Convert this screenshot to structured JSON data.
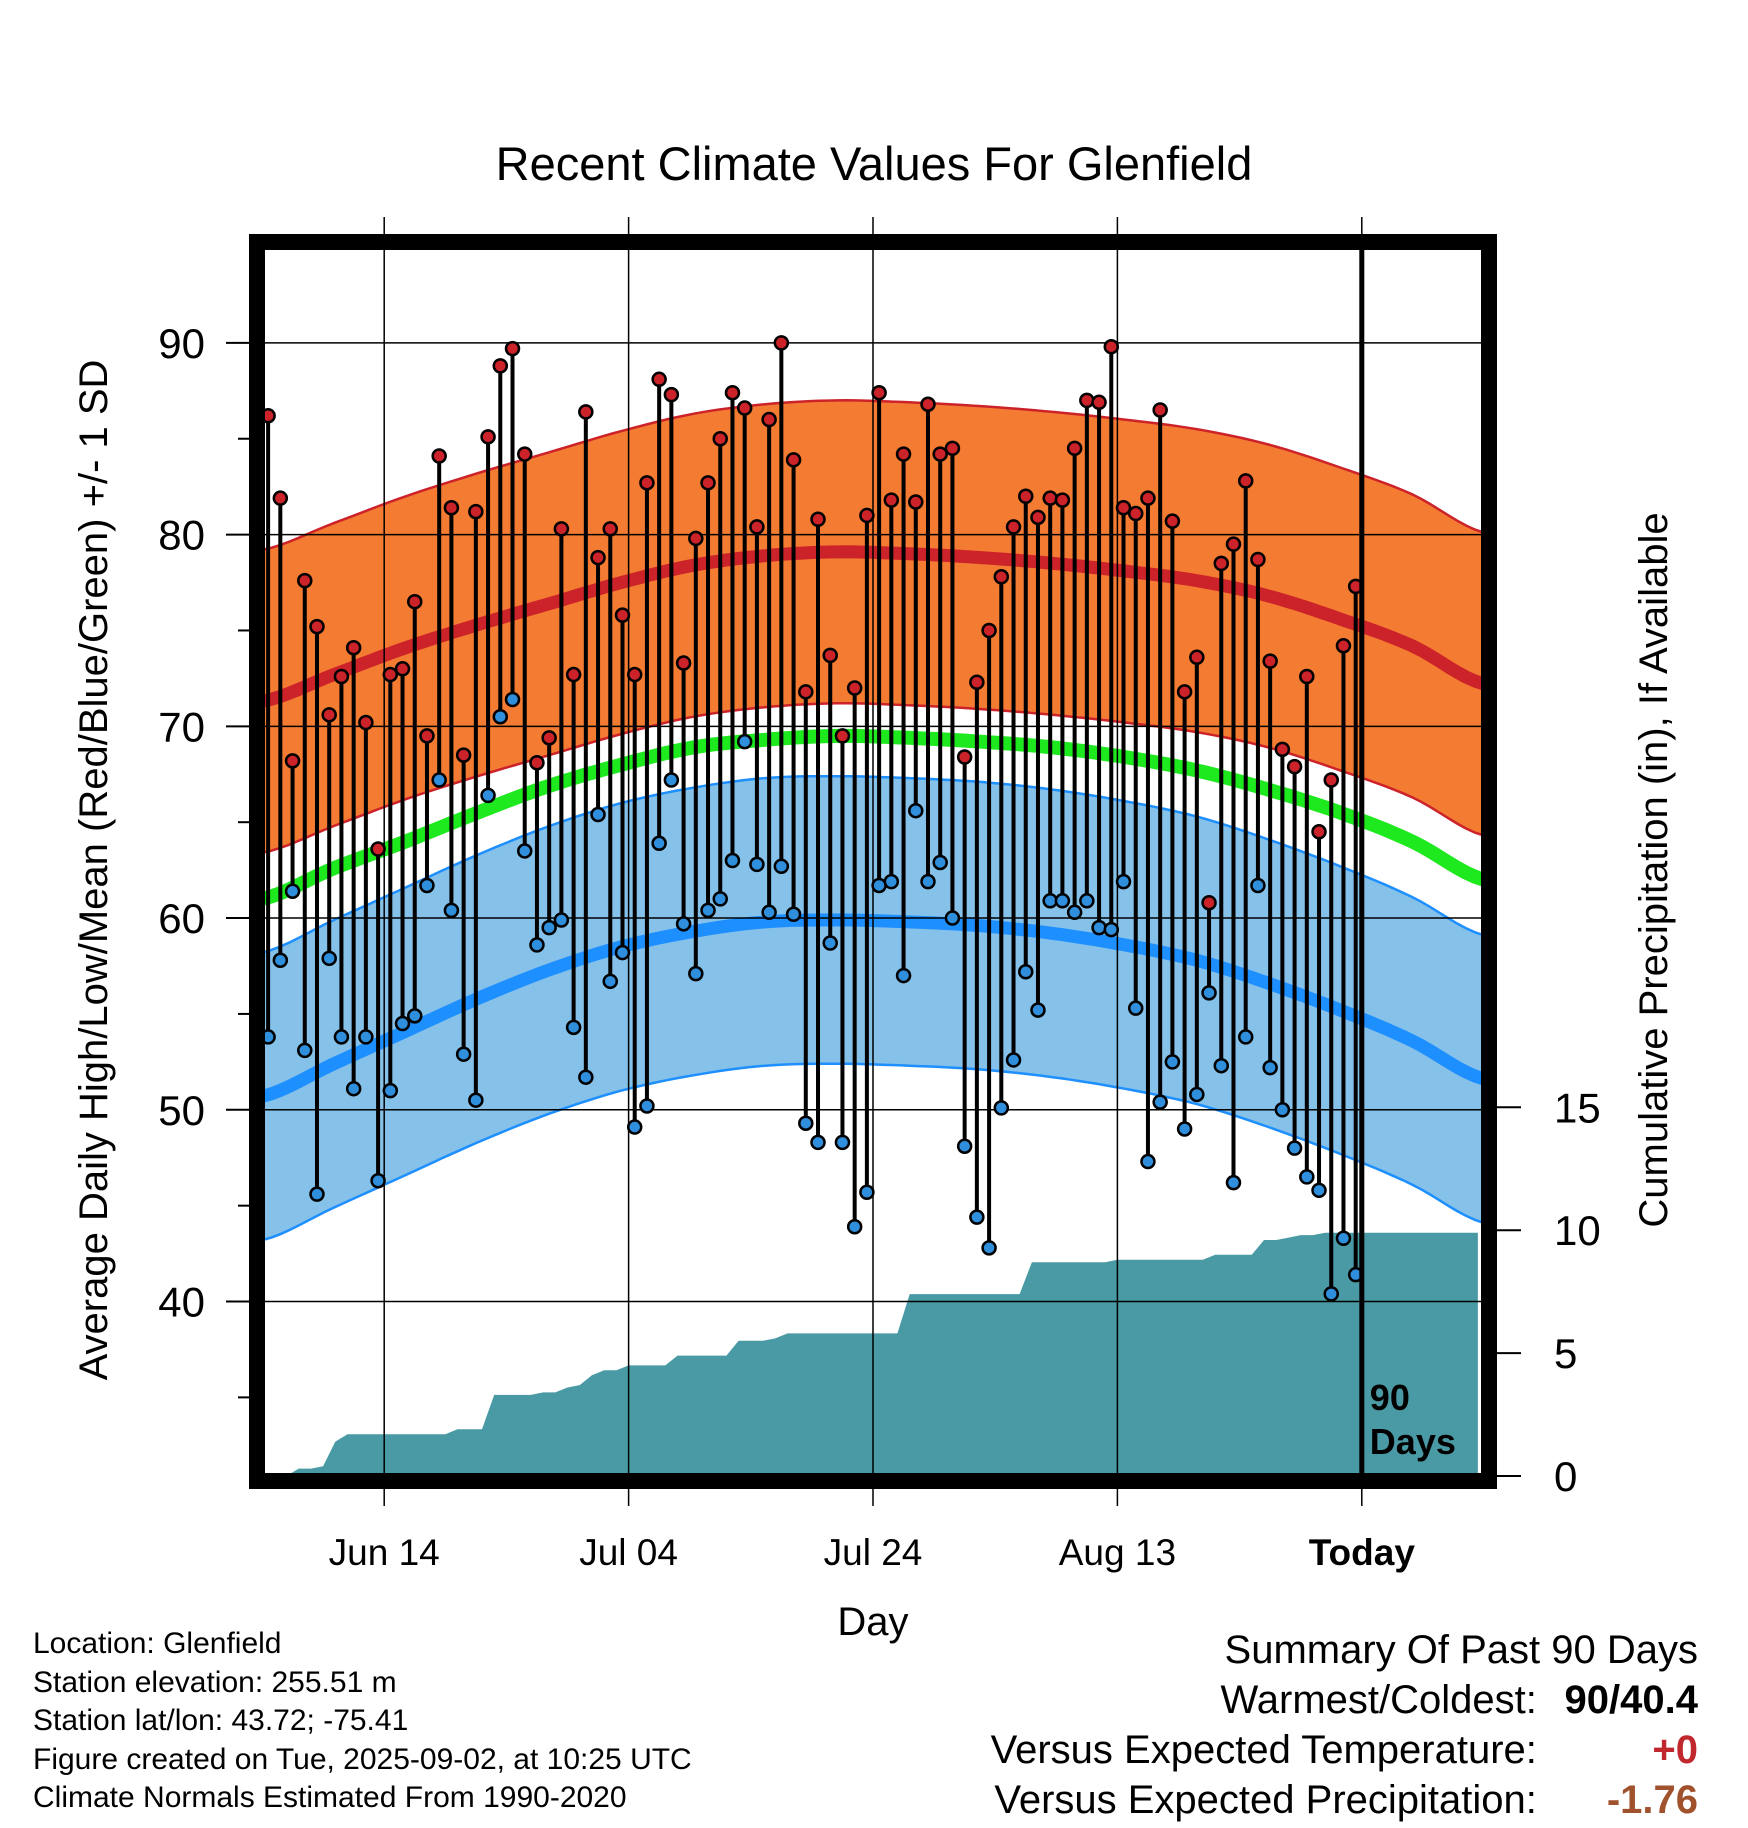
{
  "chart_data": {
    "type": "line",
    "title": "Recent Climate Values For Glenfield",
    "xlabel": "Day",
    "ylabel_left": "Average Daily High/Low/Mean (Red/Blue/Green) +/- 1 SD",
    "ylabel_right": "Cumulative Precipitation (in), If Available",
    "x_ticks": [
      "Jun 14",
      "Jul 04",
      "Jul 24",
      "Aug 13",
      "Today"
    ],
    "y_left_ticks": [
      40,
      50,
      60,
      70,
      80,
      90
    ],
    "y_right_ticks": [
      0,
      5,
      10,
      15
    ],
    "y_left_range": [
      30.9,
      95
    ],
    "y_right_range": [
      0,
      50
    ],
    "today_label": "90 Days",
    "grid": true,
    "colors": {
      "high_band": "#f47b32",
      "high_line": "#cc2229",
      "low_band": "#85c1e9",
      "low_line": "#1e8fff",
      "mean_line": "#1ee81e",
      "precip": "#4a9aa5",
      "high_dot": "#cc2229",
      "low_dot": "#2f8fdc"
    },
    "normals": {
      "high": [
        71.3,
        72.7,
        74.1,
        75.3,
        76.4,
        77.5,
        78.4,
        78.9,
        79.1,
        79.0,
        78.8,
        78.5,
        78.1,
        77.6,
        76.8,
        75.6,
        74.2,
        72.2
      ],
      "high_sd": 7.9,
      "low": [
        50.7,
        52.4,
        54.1,
        55.8,
        57.3,
        58.5,
        59.3,
        59.8,
        59.9,
        59.8,
        59.6,
        59.2,
        58.6,
        57.8,
        56.6,
        55.2,
        53.6,
        51.6
      ],
      "low_sd": 7.5,
      "mean": [
        61.0,
        62.6,
        64.0,
        65.5,
        66.9,
        68.0,
        68.9,
        69.3,
        69.5,
        69.4,
        69.2,
        68.9,
        68.4,
        67.7,
        66.7,
        65.5,
        64.0,
        62.0
      ]
    },
    "days": [
      {
        "hi": 86.2,
        "lo": 53.8
      },
      {
        "hi": 81.9,
        "lo": 57.8
      },
      {
        "hi": 68.2,
        "lo": 61.4
      },
      {
        "hi": 77.6,
        "lo": 53.1
      },
      {
        "hi": 75.2,
        "lo": 45.6
      },
      {
        "hi": 70.6,
        "lo": 57.9
      },
      {
        "hi": 72.6,
        "lo": 53.8
      },
      {
        "hi": 74.1,
        "lo": 51.1
      },
      {
        "hi": 70.2,
        "lo": 53.8
      },
      {
        "hi": 63.6,
        "lo": 46.3
      },
      {
        "hi": 72.7,
        "lo": 51.0
      },
      {
        "hi": 73.0,
        "lo": 54.5
      },
      {
        "hi": 76.5,
        "lo": 54.9
      },
      {
        "hi": 69.5,
        "lo": 61.7
      },
      {
        "hi": 84.1,
        "lo": 67.2
      },
      {
        "hi": 81.4,
        "lo": 60.4
      },
      {
        "hi": 68.5,
        "lo": 52.9
      },
      {
        "hi": 81.2,
        "lo": 50.5
      },
      {
        "hi": 85.1,
        "lo": 66.4
      },
      {
        "hi": 88.8,
        "lo": 70.5
      },
      {
        "hi": 89.7,
        "lo": 71.4
      },
      {
        "hi": 84.2,
        "lo": 63.5
      },
      {
        "hi": 68.1,
        "lo": 58.6
      },
      {
        "hi": 69.4,
        "lo": 59.5
      },
      {
        "hi": 80.3,
        "lo": 59.9
      },
      {
        "hi": 72.7,
        "lo": 54.3
      },
      {
        "hi": 86.4,
        "lo": 51.7
      },
      {
        "hi": 78.8,
        "lo": 65.4
      },
      {
        "hi": 80.3,
        "lo": 56.7
      },
      {
        "hi": 75.8,
        "lo": 58.2
      },
      {
        "hi": 72.7,
        "lo": 49.1
      },
      {
        "hi": 82.7,
        "lo": 50.2
      },
      {
        "hi": 88.1,
        "lo": 63.9
      },
      {
        "hi": 87.3,
        "lo": 67.2
      },
      {
        "hi": 73.3,
        "lo": 59.7
      },
      {
        "hi": 79.8,
        "lo": 57.1
      },
      {
        "hi": 82.7,
        "lo": 60.4
      },
      {
        "hi": 85.0,
        "lo": 61.0
      },
      {
        "hi": 87.4,
        "lo": 63.0
      },
      {
        "hi": 86.6,
        "lo": 69.2
      },
      {
        "hi": 80.4,
        "lo": 62.8
      },
      {
        "hi": 86.0,
        "lo": 60.3
      },
      {
        "hi": 90.0,
        "lo": 62.7
      },
      {
        "hi": 83.9,
        "lo": 60.2
      },
      {
        "hi": 71.8,
        "lo": 49.3
      },
      {
        "hi": 80.8,
        "lo": 48.3
      },
      {
        "hi": 73.7,
        "lo": 58.7
      },
      {
        "hi": 69.5,
        "lo": 48.3
      },
      {
        "hi": 72.0,
        "lo": 43.9
      },
      {
        "hi": 81.0,
        "lo": 45.7
      },
      {
        "hi": 87.4,
        "lo": 61.7
      },
      {
        "hi": 81.8,
        "lo": 61.9
      },
      {
        "hi": 84.2,
        "lo": 57.0
      },
      {
        "hi": 81.7,
        "lo": 65.6
      },
      {
        "hi": 86.8,
        "lo": 61.9
      },
      {
        "hi": 84.2,
        "lo": 62.9
      },
      {
        "hi": 84.5,
        "lo": 60.0
      },
      {
        "hi": 68.4,
        "lo": 48.1
      },
      {
        "hi": 72.3,
        "lo": 44.4
      },
      {
        "hi": 75.0,
        "lo": 42.8
      },
      {
        "hi": 77.8,
        "lo": 50.1
      },
      {
        "hi": 80.4,
        "lo": 52.6
      },
      {
        "hi": 82.0,
        "lo": 57.2
      },
      {
        "hi": 80.9,
        "lo": 55.2
      },
      {
        "hi": 81.9,
        "lo": 60.9
      },
      {
        "hi": 81.8,
        "lo": 60.9
      },
      {
        "hi": 84.5,
        "lo": 60.3
      },
      {
        "hi": 87.0,
        "lo": 60.9
      },
      {
        "hi": 86.9,
        "lo": 59.5
      },
      {
        "hi": 89.8,
        "lo": 59.4
      },
      {
        "hi": 81.4,
        "lo": 61.9
      },
      {
        "hi": 81.1,
        "lo": 55.3
      },
      {
        "hi": 81.9,
        "lo": 47.3
      },
      {
        "hi": 86.5,
        "lo": 50.4
      },
      {
        "hi": 80.7,
        "lo": 52.5
      },
      {
        "hi": 71.8,
        "lo": 49.0
      },
      {
        "hi": 73.6,
        "lo": 50.8
      },
      {
        "hi": 60.8,
        "lo": 56.1
      },
      {
        "hi": 78.5,
        "lo": 52.3
      },
      {
        "hi": 79.5,
        "lo": 46.2
      },
      {
        "hi": 82.8,
        "lo": 53.8
      },
      {
        "hi": 78.7,
        "lo": 61.7
      },
      {
        "hi": 73.4,
        "lo": 52.2
      },
      {
        "hi": 68.8,
        "lo": 50.0
      },
      {
        "hi": 67.9,
        "lo": 48.0
      },
      {
        "hi": 72.6,
        "lo": 46.5
      },
      {
        "hi": 64.5,
        "lo": 45.8
      },
      {
        "hi": 67.2,
        "lo": 40.4
      },
      {
        "hi": 74.2,
        "lo": 43.3
      },
      {
        "hi": 77.3,
        "lo": 41.4
      }
    ],
    "precip_cumulative": [
      [
        0,
        0
      ],
      [
        2,
        0
      ],
      [
        3,
        0.3
      ],
      [
        4,
        0.3
      ],
      [
        5,
        0.4
      ],
      [
        6,
        1.4
      ],
      [
        7,
        1.7
      ],
      [
        8,
        1.7
      ],
      [
        9,
        1.7
      ],
      [
        10,
        1.7
      ],
      [
        11,
        1.7
      ],
      [
        12,
        1.7
      ],
      [
        13,
        1.7
      ],
      [
        14,
        1.7
      ],
      [
        15,
        1.7
      ],
      [
        16,
        1.9
      ],
      [
        17,
        1.9
      ],
      [
        18,
        1.9
      ],
      [
        19,
        3.3
      ],
      [
        20,
        3.3
      ],
      [
        21,
        3.3
      ],
      [
        22,
        3.3
      ],
      [
        23,
        3.4
      ],
      [
        24,
        3.4
      ],
      [
        25,
        3.6
      ],
      [
        26,
        3.7
      ],
      [
        27,
        4.1
      ],
      [
        28,
        4.3
      ],
      [
        29,
        4.3
      ],
      [
        30,
        4.5
      ],
      [
        31,
        4.5
      ],
      [
        32,
        4.5
      ],
      [
        33,
        4.5
      ],
      [
        34,
        4.9
      ],
      [
        35,
        4.9
      ],
      [
        36,
        4.9
      ],
      [
        37,
        4.9
      ],
      [
        38,
        4.9
      ],
      [
        39,
        5.5
      ],
      [
        40,
        5.5
      ],
      [
        41,
        5.5
      ],
      [
        42,
        5.6
      ],
      [
        43,
        5.8
      ],
      [
        44,
        5.8
      ],
      [
        45,
        5.8
      ],
      [
        46,
        5.8
      ],
      [
        47,
        5.8
      ],
      [
        48,
        5.8
      ],
      [
        49,
        5.8
      ],
      [
        50,
        5.8
      ],
      [
        51,
        5.8
      ],
      [
        52,
        5.8
      ],
      [
        53,
        7.4
      ],
      [
        54,
        7.4
      ],
      [
        55,
        7.4
      ],
      [
        56,
        7.4
      ],
      [
        57,
        7.4
      ],
      [
        58,
        7.4
      ],
      [
        59,
        7.4
      ],
      [
        60,
        7.4
      ],
      [
        61,
        7.4
      ],
      [
        62,
        7.4
      ],
      [
        63,
        8.7
      ],
      [
        64,
        8.7
      ],
      [
        65,
        8.7
      ],
      [
        66,
        8.7
      ],
      [
        67,
        8.7
      ],
      [
        68,
        8.7
      ],
      [
        69,
        8.7
      ],
      [
        70,
        8.8
      ],
      [
        71,
        8.8
      ],
      [
        72,
        8.8
      ],
      [
        73,
        8.8
      ],
      [
        74,
        8.8
      ],
      [
        75,
        8.8
      ],
      [
        76,
        8.8
      ],
      [
        77,
        8.8
      ],
      [
        78,
        9.0
      ],
      [
        79,
        9.0
      ],
      [
        80,
        9.0
      ],
      [
        81,
        9.0
      ],
      [
        82,
        9.6
      ],
      [
        83,
        9.6
      ],
      [
        84,
        9.7
      ],
      [
        85,
        9.8
      ],
      [
        86,
        9.8
      ],
      [
        87,
        9.9
      ],
      [
        88,
        9.9
      ],
      [
        89,
        9.9
      ],
      [
        90,
        9.9
      ],
      [
        93,
        9.9
      ],
      [
        99.5,
        9.9
      ]
    ]
  },
  "meta": {
    "location": "Location: Glenfield",
    "elevation": "Station elevation: 255.51 m",
    "latlon": "Station lat/lon: 43.72; -75.41",
    "created": "Figure created on Tue, 2025-09-02, at 10:25 UTC",
    "normals": "Climate Normals Estimated From 1990-2020"
  },
  "summary": {
    "title": "Summary Of Past 90 Days",
    "warm_cold_label": "Warmest/Coldest:",
    "warm_cold_value": "90/40.4",
    "temp_label": "Versus Expected Temperature:",
    "temp_value": "+0",
    "precip_label": "Versus Expected Precipitation:",
    "precip_value": "-1.76"
  }
}
